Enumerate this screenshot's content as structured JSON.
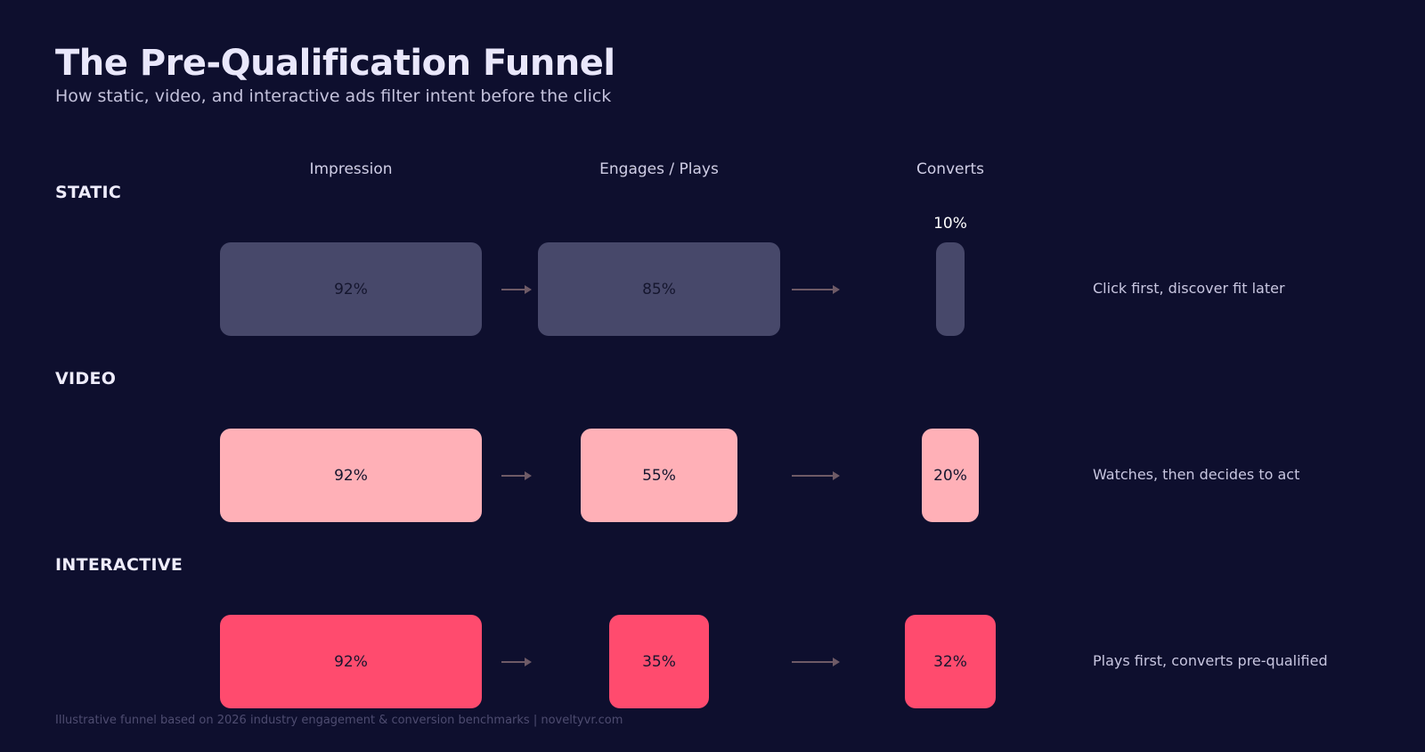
{
  "title": "The Pre-Qualification Funnel",
  "subtitle": "How static, video, and interactive ads filter intent before the click",
  "footer": "Illustrative funnel based on 2026 industry engagement & conversion benchmarks  |  noveltyvr.com",
  "chart_data": {
    "type": "bar",
    "stages": [
      "Impression",
      "Engages / Plays",
      "Converts"
    ],
    "series": [
      {
        "name": "STATIC",
        "values": [
          92,
          85,
          10
        ],
        "labels": [
          "92%",
          "85%",
          "10%"
        ],
        "note": "Click first, discover fit later",
        "color": "#47486a"
      },
      {
        "name": "VIDEO",
        "values": [
          92,
          55,
          20
        ],
        "labels": [
          "92%",
          "55%",
          "20%"
        ],
        "note": "Watches, then decides to act",
        "color": "#ffb0b7"
      },
      {
        "name": "INTERACTIVE",
        "values": [
          92,
          35,
          32
        ],
        "labels": [
          "92%",
          "35%",
          "32%"
        ],
        "note": "Plays first, converts pre-qualified",
        "color": "#ff4b6e"
      }
    ]
  }
}
